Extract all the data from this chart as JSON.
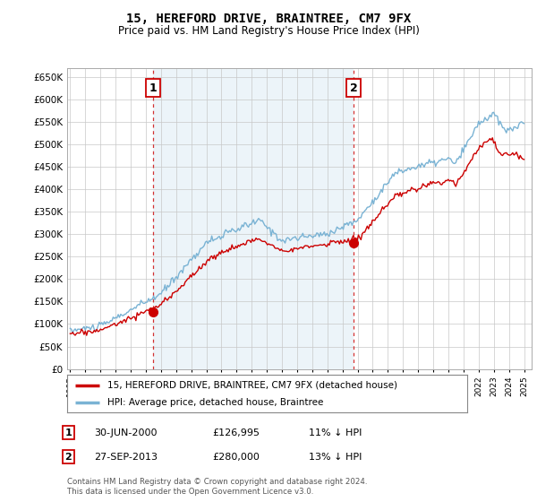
{
  "title": "15, HEREFORD DRIVE, BRAINTREE, CM7 9FX",
  "subtitle": "Price paid vs. HM Land Registry's House Price Index (HPI)",
  "ytick_values": [
    0,
    50000,
    100000,
    150000,
    200000,
    250000,
    300000,
    350000,
    400000,
    450000,
    500000,
    550000,
    600000,
    650000
  ],
  "ylim": [
    0,
    670000
  ],
  "sale1_date": 2000.5,
  "sale1_price": 126995,
  "sale2_date": 2013.75,
  "sale2_price": 280000,
  "hpi_color": "#7ab3d4",
  "price_color": "#cc0000",
  "vline_color": "#cc0000",
  "fill_color": "#ddeeff",
  "background_color": "#ffffff",
  "grid_color": "#c8c8c8",
  "legend_entry1": "15, HEREFORD DRIVE, BRAINTREE, CM7 9FX (detached house)",
  "legend_entry2": "HPI: Average price, detached house, Braintree",
  "table_row1": [
    "1",
    "30-JUN-2000",
    "£126,995",
    "11% ↓ HPI"
  ],
  "table_row2": [
    "2",
    "27-SEP-2013",
    "£280,000",
    "13% ↓ HPI"
  ],
  "footnote": "Contains HM Land Registry data © Crown copyright and database right 2024.\nThis data is licensed under the Open Government Licence v3.0.",
  "xmin": 1994.8,
  "xmax": 2025.5
}
